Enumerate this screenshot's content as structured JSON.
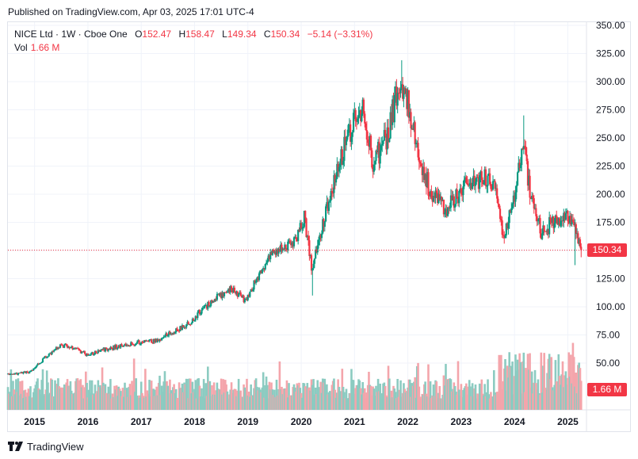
{
  "header": {
    "published": "Published on TradingView.com, Apr 03, 2025 17:01 UTC-4"
  },
  "legend": {
    "symbol": "NICE Ltd · 1W · Cboe One",
    "o_label": "O",
    "o_value": "152.47",
    "h_label": "H",
    "h_value": "158.47",
    "l_label": "L",
    "l_value": "149.34",
    "c_label": "C",
    "c_value": "150.34",
    "change": "−5.14 (−3.31%)",
    "vol_label": "Vol",
    "vol_value": "1.66 M"
  },
  "price_tag": "150.34",
  "volume_tag": "1.66 M",
  "footer": {
    "brand": "TradingView"
  },
  "colors": {
    "up": "#089981",
    "down": "#f23645",
    "up_volume": "#8ccbc1",
    "down_volume": "#f4a5ab",
    "grid": "#f0f3fa",
    "text": "#131722"
  },
  "chart_data": {
    "type": "candlestick",
    "series_name": "NICE Ltd",
    "timeframe": "1W",
    "y_axis": {
      "ticks": [
        350,
        325,
        300,
        275,
        250,
        225,
        200,
        175,
        150,
        125,
        100,
        75,
        50
      ],
      "tick_labels": [
        "350.00",
        "325.00",
        "300.00",
        "275.00",
        "250.00",
        "225.00",
        "200.00",
        "175.00",
        "150.00",
        "125.00",
        "100.00",
        "75.00",
        "50.00"
      ],
      "range": [
        14,
        350
      ]
    },
    "x_axis": {
      "labels": [
        "2015",
        "2016",
        "2017",
        "2018",
        "2019",
        "2020",
        "2021",
        "2022",
        "2023",
        "2024",
        "2025"
      ],
      "label_times": [
        2015,
        2016,
        2017,
        2018,
        2019,
        2020,
        2021,
        2022,
        2023,
        2024,
        2025
      ],
      "range": [
        2014.5,
        2025.35
      ]
    },
    "last_close": 150.34,
    "price_anchors": [
      {
        "t": 2014.5,
        "p": 40
      },
      {
        "t": 2014.9,
        "p": 42
      },
      {
        "t": 2015.2,
        "p": 55
      },
      {
        "t": 2015.5,
        "p": 66
      },
      {
        "t": 2015.8,
        "p": 62
      },
      {
        "t": 2016.0,
        "p": 57
      },
      {
        "t": 2016.3,
        "p": 62
      },
      {
        "t": 2016.6,
        "p": 65
      },
      {
        "t": 2016.9,
        "p": 68
      },
      {
        "t": 2017.3,
        "p": 70
      },
      {
        "t": 2017.6,
        "p": 78
      },
      {
        "t": 2017.9,
        "p": 85
      },
      {
        "t": 2018.1,
        "p": 96
      },
      {
        "t": 2018.4,
        "p": 108
      },
      {
        "t": 2018.7,
        "p": 116
      },
      {
        "t": 2018.95,
        "p": 105
      },
      {
        "t": 2019.2,
        "p": 128
      },
      {
        "t": 2019.5,
        "p": 150
      },
      {
        "t": 2019.9,
        "p": 158
      },
      {
        "t": 2020.05,
        "p": 180
      },
      {
        "t": 2020.2,
        "p": 135
      },
      {
        "t": 2020.4,
        "p": 175
      },
      {
        "t": 2020.7,
        "p": 225
      },
      {
        "t": 2020.95,
        "p": 260
      },
      {
        "t": 2021.15,
        "p": 275
      },
      {
        "t": 2021.35,
        "p": 228
      },
      {
        "t": 2021.6,
        "p": 250
      },
      {
        "t": 2021.85,
        "p": 300
      },
      {
        "t": 2022.0,
        "p": 285
      },
      {
        "t": 2022.2,
        "p": 235
      },
      {
        "t": 2022.4,
        "p": 205
      },
      {
        "t": 2022.7,
        "p": 185
      },
      {
        "t": 2022.95,
        "p": 200
      },
      {
        "t": 2023.15,
        "p": 210
      },
      {
        "t": 2023.4,
        "p": 215
      },
      {
        "t": 2023.65,
        "p": 210
      },
      {
        "t": 2023.8,
        "p": 160
      },
      {
        "t": 2024.0,
        "p": 195
      },
      {
        "t": 2024.15,
        "p": 245
      },
      {
        "t": 2024.3,
        "p": 200
      },
      {
        "t": 2024.5,
        "p": 165
      },
      {
        "t": 2024.7,
        "p": 175
      },
      {
        "t": 2024.95,
        "p": 180
      },
      {
        "t": 2025.15,
        "p": 165
      },
      {
        "t": 2025.25,
        "p": 150
      }
    ],
    "extremes": [
      {
        "t": 2021.88,
        "high": 319
      },
      {
        "t": 2024.18,
        "high": 270
      },
      {
        "t": 2020.22,
        "low": 110
      },
      {
        "t": 2025.13,
        "low": 137
      }
    ],
    "volume_tag": "1.66 M"
  }
}
